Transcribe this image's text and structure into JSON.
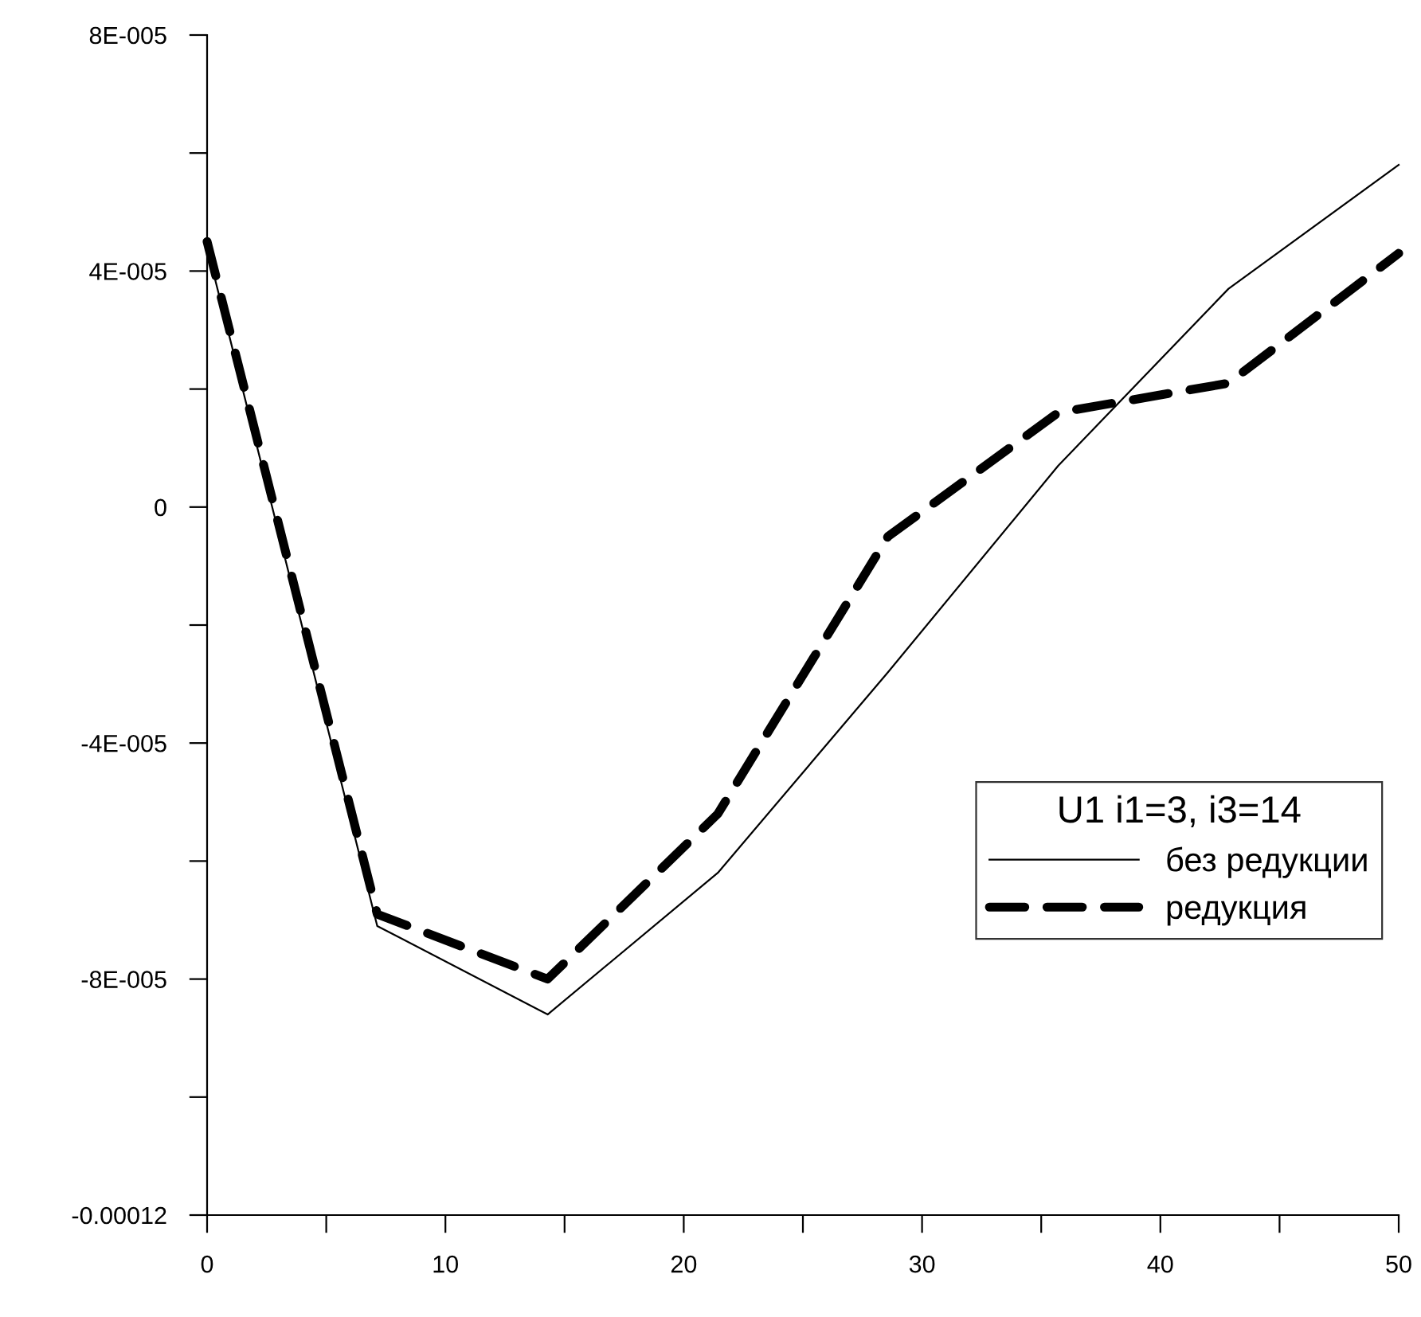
{
  "chart_data": {
    "type": "line",
    "legend_title": "U1 i1=3, i3=14",
    "legend": "bottom right",
    "grid": false,
    "marker": "none",
    "x": [
      0,
      7.14,
      14.29,
      21.43,
      28.57,
      35.71,
      42.86,
      50
    ],
    "series": [
      {
        "name": "без редукции",
        "color": "#000000",
        "line_style": "solid",
        "values": [
          4.4e-05,
          -7.1e-05,
          -8.6e-05,
          -6.2e-05,
          -2.8e-05,
          7e-06,
          3.7e-05,
          5.8e-05
        ]
      },
      {
        "name": "редукция",
        "color": "#000000",
        "line_style": "dashed",
        "values": [
          4.5e-05,
          -6.9e-05,
          -8e-05,
          -5.2e-05,
          -5e-06,
          1.6e-05,
          2.1e-05,
          4.3e-05
        ]
      }
    ],
    "xlim": [
      0,
      50
    ],
    "xticks": [
      0,
      {
        "value": 5,
        "label": null
      },
      10,
      {
        "value": 15,
        "label": null
      },
      20,
      {
        "value": 25,
        "label": null
      },
      30,
      {
        "value": 35,
        "label": null
      },
      40,
      {
        "value": 45,
        "label": null
      },
      50
    ],
    "ylim": [
      -0.00012,
      8e-05
    ],
    "yticks": [
      {
        "value": -0.00012,
        "label": "-0.00012"
      },
      {
        "value": -0.0001,
        "label": null
      },
      {
        "value": -8e-05,
        "label": "-8E-005"
      },
      {
        "value": -6e-05,
        "label": null
      },
      {
        "value": -4e-05,
        "label": "-4E-005"
      },
      {
        "value": -2e-05,
        "label": null
      },
      {
        "value": 0,
        "label": "0"
      },
      {
        "value": 2e-05,
        "label": null
      },
      {
        "value": 4e-05,
        "label": "4E-005"
      },
      {
        "value": 6e-05,
        "label": null
      },
      {
        "value": 8e-05,
        "label": "8E-005"
      }
    ]
  }
}
